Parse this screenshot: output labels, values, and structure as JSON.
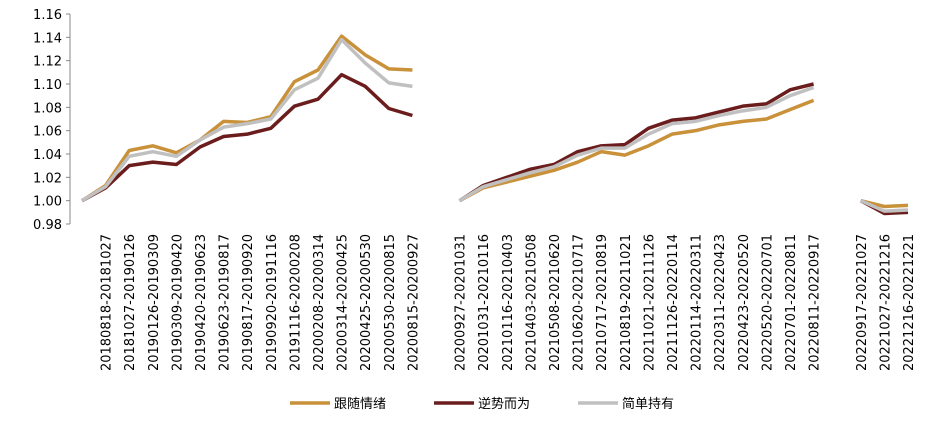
{
  "chart_data": {
    "type": "line",
    "categories": [
      null,
      "20180818-20181027",
      "20181027-20190126",
      "20190126-20190309",
      "20190309-20190420",
      "20190420-20190623",
      "20190623-20190817",
      "20190817-20190920",
      "20190920-20191116",
      "20191116-20200208",
      "20200208-20200314",
      "20200314-20200425",
      "20200425-20200530",
      "20200530-20200815",
      "20200815-20200927",
      null,
      "20200927-20201031",
      "20201031-20210116",
      "20210116-20210403",
      "20210403-20210508",
      "20210508-20210620",
      "20210620-20210717",
      "20210717-20210819",
      "20210819-20211021",
      "20211021-20211126",
      "20211126-20220114",
      "20220114-20220311",
      "20220311-20220423",
      "20220423-20220520",
      "20220520-20220701",
      "20220701-20220811",
      "20220811-20220917",
      null,
      "20220917-20221027",
      "20221027-20221216",
      "20221216-20221221"
    ],
    "series": [
      {
        "name": "跟随情绪",
        "color": "#c8913a",
        "values": [
          1.0,
          1.013,
          1.043,
          1.047,
          1.041,
          1.052,
          1.068,
          1.067,
          1.072,
          1.102,
          1.112,
          1.141,
          1.125,
          1.113,
          1.112,
          null,
          1.0,
          1.011,
          1.016,
          1.021,
          1.026,
          1.033,
          1.042,
          1.039,
          1.047,
          1.057,
          1.06,
          1.065,
          1.068,
          1.07,
          1.078,
          1.086,
          null,
          1.0,
          0.995,
          0.996
        ]
      },
      {
        "name": "逆势而为",
        "color": "#6b1d1d",
        "values": [
          1.0,
          1.011,
          1.03,
          1.033,
          1.031,
          1.046,
          1.055,
          1.057,
          1.062,
          1.081,
          1.087,
          1.108,
          1.098,
          1.079,
          1.073,
          null,
          1.0,
          1.013,
          1.02,
          1.027,
          1.031,
          1.042,
          1.047,
          1.048,
          1.062,
          1.069,
          1.071,
          1.076,
          1.081,
          1.083,
          1.095,
          1.1,
          null,
          1.0,
          0.989,
          0.99
        ]
      },
      {
        "name": "简单持有",
        "color": "#c0c0c0",
        "values": [
          1.0,
          1.012,
          1.038,
          1.042,
          1.038,
          1.052,
          1.063,
          1.066,
          1.07,
          1.095,
          1.105,
          1.138,
          1.118,
          1.101,
          1.098,
          null,
          1.0,
          1.012,
          1.018,
          1.024,
          1.029,
          1.039,
          1.045,
          1.045,
          1.057,
          1.066,
          1.068,
          1.073,
          1.077,
          1.08,
          1.09,
          1.097,
          null,
          1.0,
          0.991,
          0.992
        ]
      }
    ],
    "ylim": [
      0.98,
      1.16
    ],
    "yticks": [
      0.98,
      {
        "value": 1.0,
        "label": "1.00"
      },
      1.02,
      1.04,
      1.06,
      1.08,
      {
        "value": 1.1,
        "label": "1.10"
      },
      1.12,
      1.14,
      1.16
    ],
    "grid": false,
    "legend": "bottom"
  }
}
